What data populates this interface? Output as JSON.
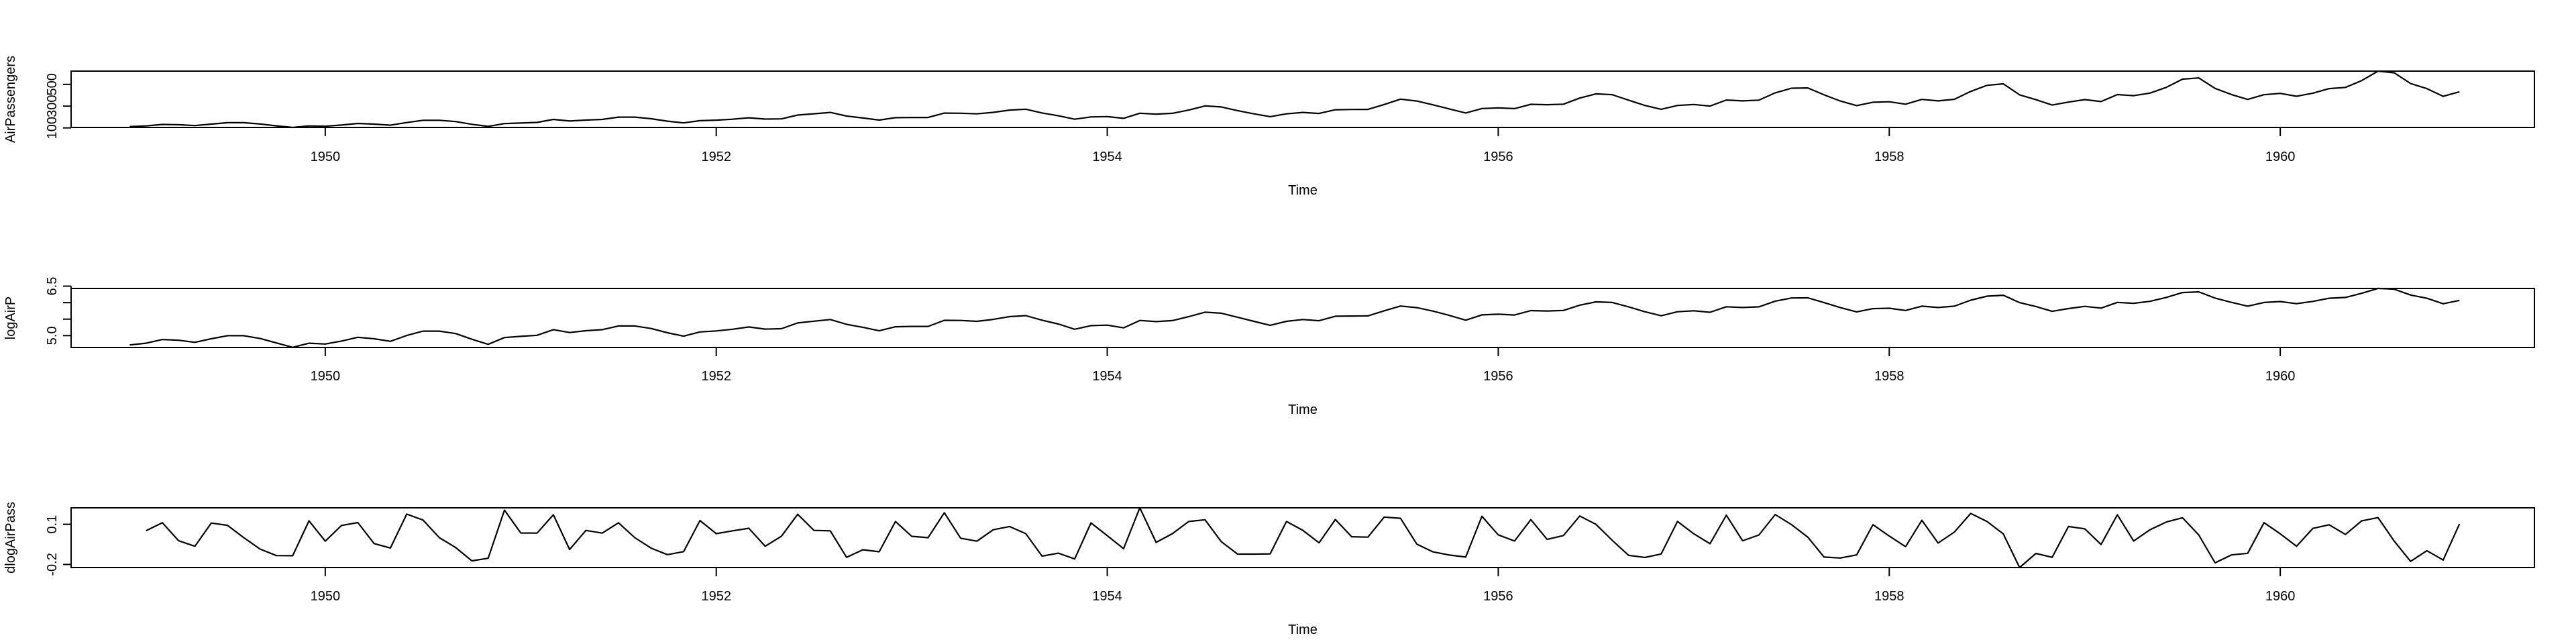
{
  "chart_data": [
    {
      "type": "line",
      "xlabel": "Time",
      "ylabel": "AirPassengers",
      "xlim": [
        1948.7,
        1961.3
      ],
      "xticks": [
        1950,
        1952,
        1954,
        1956,
        1958,
        1960
      ],
      "xtick_labels": [
        "1950",
        "1952",
        "1954",
        "1956",
        "1958",
        "1960"
      ],
      "ylim": [
        104,
        622
      ],
      "yticks": [
        100,
        300,
        500
      ],
      "ytick_labels": [
        "100",
        "300",
        "500"
      ],
      "x": {
        "start": 1949.0,
        "step": 0.0833333
      },
      "series": [
        {
          "values": [
            112,
            118,
            132,
            129,
            121,
            135,
            148,
            148,
            136,
            119,
            104,
            118,
            115,
            126,
            141,
            135,
            125,
            149,
            170,
            170,
            158,
            133,
            114,
            140,
            145,
            150,
            178,
            163,
            172,
            178,
            199,
            199,
            184,
            162,
            146,
            166,
            171,
            180,
            193,
            181,
            183,
            218,
            230,
            242,
            209,
            191,
            172,
            194,
            196,
            196,
            236,
            235,
            229,
            243,
            264,
            272,
            237,
            211,
            180,
            201,
            204,
            188,
            235,
            227,
            234,
            264,
            302,
            293,
            259,
            229,
            203,
            229,
            242,
            233,
            267,
            269,
            270,
            315,
            364,
            347,
            312,
            274,
            237,
            278,
            284,
            277,
            317,
            313,
            318,
            374,
            413,
            405,
            355,
            306,
            271,
            306,
            315,
            301,
            356,
            348,
            355,
            422,
            465,
            467,
            404,
            347,
            305,
            336,
            340,
            318,
            362,
            348,
            363,
            435,
            491,
            505,
            404,
            359,
            310,
            337,
            360,
            342,
            406,
            396,
            420,
            472,
            548,
            559,
            463,
            407,
            362,
            405,
            417,
            391,
            419,
            461,
            472,
            535,
            622,
            606,
            508,
            461,
            390,
            432
          ]
        }
      ]
    },
    {
      "type": "line",
      "xlabel": "Time",
      "ylabel": "logAirP",
      "xlim": [
        1948.7,
        1961.3
      ],
      "xticks": [
        1950,
        1952,
        1954,
        1956,
        1958,
        1960
      ],
      "xtick_labels": [
        "1950",
        "1952",
        "1954",
        "1956",
        "1958",
        "1960"
      ],
      "ylim": [
        4.64,
        6.43
      ],
      "yticks": [
        5.0,
        5.5,
        6.0,
        6.5
      ],
      "ytick_labels": [
        "5.0",
        "",
        "",
        "6.5"
      ],
      "x": {
        "start": 1949.0,
        "step": 0.0833333
      },
      "series": [
        {
          "values": [
            4.718,
            4.771,
            4.883,
            4.86,
            4.796,
            4.905,
            4.997,
            4.997,
            4.913,
            4.779,
            4.644,
            4.771,
            4.745,
            4.836,
            4.949,
            4.905,
            4.828,
            5.004,
            5.136,
            5.136,
            5.063,
            4.89,
            4.736,
            4.942,
            4.977,
            5.011,
            5.182,
            5.094,
            5.148,
            5.182,
            5.293,
            5.293,
            5.215,
            5.088,
            4.984,
            5.112,
            5.142,
            5.193,
            5.263,
            5.198,
            5.209,
            5.384,
            5.438,
            5.489,
            5.342,
            5.252,
            5.147,
            5.268,
            5.278,
            5.278,
            5.464,
            5.46,
            5.434,
            5.493,
            5.576,
            5.606,
            5.468,
            5.352,
            5.193,
            5.303,
            5.318,
            5.236,
            5.46,
            5.425,
            5.455,
            5.576,
            5.71,
            5.68,
            5.557,
            5.434,
            5.313,
            5.434,
            5.489,
            5.451,
            5.587,
            5.595,
            5.598,
            5.753,
            5.897,
            5.849,
            5.743,
            5.613,
            5.468,
            5.628,
            5.649,
            5.624,
            5.759,
            5.746,
            5.762,
            5.924,
            6.023,
            6.004,
            5.872,
            5.724,
            5.602,
            5.724,
            5.753,
            5.707,
            5.875,
            5.852,
            5.872,
            6.045,
            6.142,
            6.146,
            6.001,
            5.849,
            5.72,
            5.817,
            5.829,
            5.762,
            5.892,
            5.852,
            5.894,
            6.075,
            6.196,
            6.225,
            6.001,
            5.883,
            5.737,
            5.82,
            5.886,
            5.835,
            6.006,
            5.981,
            6.04,
            6.157,
            6.306,
            6.326,
            6.138,
            6.009,
            5.892,
            6.004,
            6.033,
            5.969,
            6.038,
            6.133,
            6.157,
            6.283,
            6.433,
            6.407,
            6.23,
            6.133,
            5.966,
            6.068
          ]
        }
      ]
    },
    {
      "type": "line",
      "xlabel": "Time",
      "ylabel": "dlogAirPass",
      "xlim": [
        1948.7,
        1961.3
      ],
      "xticks": [
        1950,
        1952,
        1954,
        1956,
        1958,
        1960
      ],
      "xtick_labels": [
        "1950",
        "1952",
        "1954",
        "1956",
        "1958",
        "1960"
      ],
      "ylim": [
        -0.223,
        0.223
      ],
      "yticks": [
        -0.2,
        0.1
      ],
      "ytick_labels": [
        "-0.2",
        "0.1"
      ],
      "x": {
        "start": 1949.0833333,
        "step": 0.0833333
      },
      "series": [
        {
          "values": [
            0.052,
            0.112,
            -0.023,
            -0.064,
            0.109,
            0.092,
            0.0,
            -0.085,
            -0.134,
            -0.135,
            0.126,
            -0.026,
            0.091,
            0.113,
            -0.044,
            -0.077,
            0.176,
            0.132,
            0.0,
            -0.073,
            -0.173,
            -0.154,
            0.206,
            0.035,
            0.034,
            0.171,
            -0.088,
            0.054,
            0.034,
            0.111,
            0.0,
            -0.078,
            -0.127,
            -0.104,
            0.128,
            0.03,
            0.051,
            0.07,
            -0.064,
            0.011,
            0.175,
            0.054,
            0.051,
            -0.147,
            -0.09,
            -0.105,
            0.121,
            0.01,
            0.0,
            0.186,
            -0.004,
            -0.026,
            0.059,
            0.083,
            0.03,
            -0.138,
            -0.116,
            -0.159,
            0.11,
            0.015,
            -0.082,
            0.223,
            -0.035,
            0.03,
            0.121,
            0.134,
            -0.03,
            -0.123,
            -0.123,
            -0.121,
            0.121,
            0.055,
            -0.038,
            0.136,
            0.007,
            0.004,
            0.154,
            0.145,
            -0.048,
            -0.106,
            -0.13,
            -0.145,
            0.16,
            0.021,
            -0.025,
            0.135,
            -0.013,
            0.016,
            0.162,
            0.099,
            -0.02,
            -0.132,
            -0.148,
            -0.122,
            0.122,
            0.029,
            -0.045,
            0.168,
            -0.023,
            0.02,
            0.173,
            0.097,
            0.004,
            -0.145,
            -0.152,
            -0.129,
            0.097,
            0.012,
            -0.067,
            0.13,
            -0.04,
            0.042,
            0.181,
            0.121,
            0.028,
            -0.223,
            -0.118,
            -0.147,
            0.083,
            0.066,
            -0.051,
            0.171,
            -0.025,
            0.059,
            0.117,
            0.149,
            0.02,
            -0.188,
            -0.129,
            -0.117,
            0.112,
            0.029,
            -0.064,
            0.069,
            0.096,
            0.024,
            0.126,
            0.15,
            -0.026,
            -0.177,
            -0.097,
            -0.167,
            0.102
          ]
        }
      ]
    }
  ]
}
